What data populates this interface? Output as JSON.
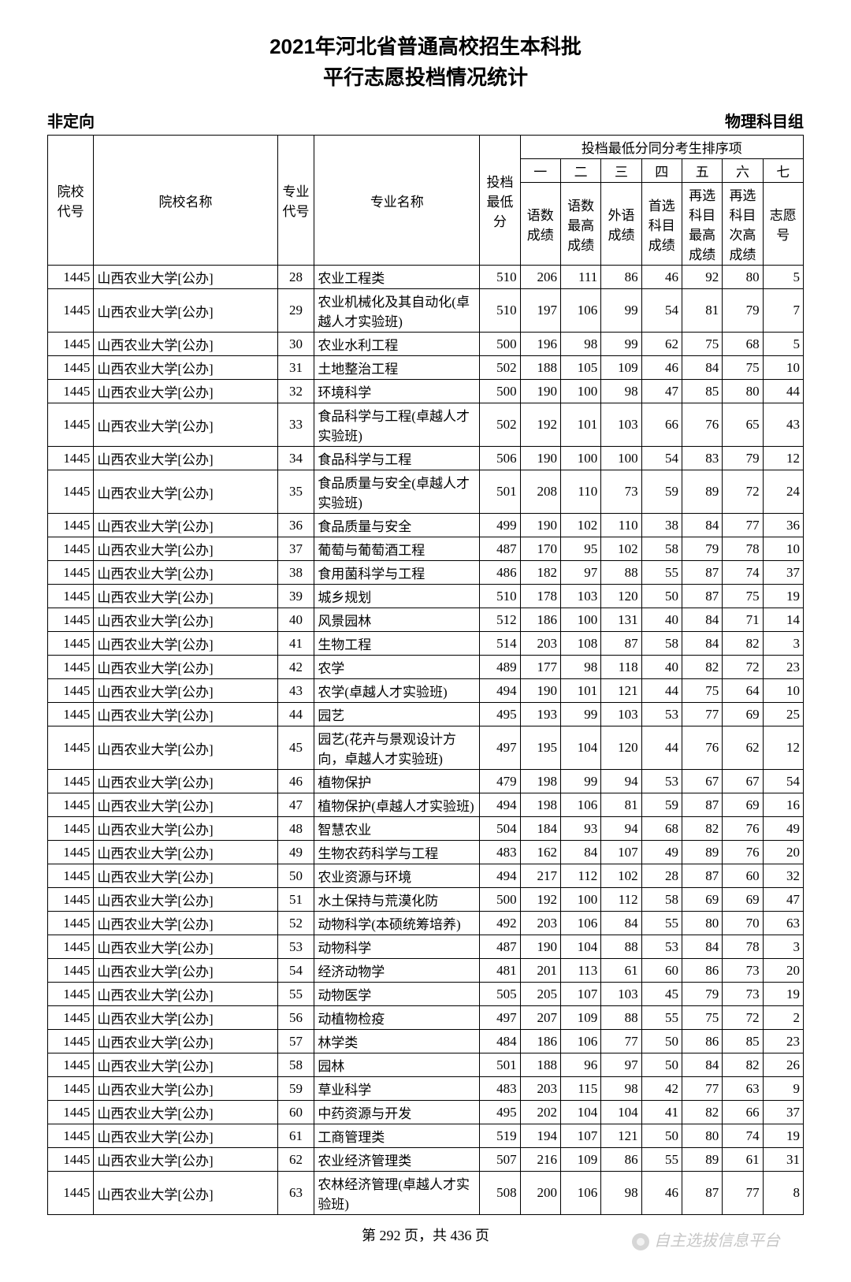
{
  "title_line1": "2021年河北省普通高校招生本科批",
  "title_line2": "平行志愿投档情况统计",
  "left_label": "非定向",
  "right_label": "物理科目组",
  "header_group": "投档最低分同分考生排序项",
  "cols": {
    "school_code": "院校代号",
    "school_name": "院校名称",
    "major_code": "专业代号",
    "major_name": "专业名称",
    "min_score": "投档最低分",
    "num1": "一",
    "num2": "二",
    "num3": "三",
    "num4": "四",
    "num5": "五",
    "num6": "六",
    "num7": "七",
    "sub1": "语数成绩",
    "sub2": "语数最高成绩",
    "sub3": "外语成绩",
    "sub4": "首选科目成绩",
    "sub5": "再选科目最高成绩",
    "sub6": "再选科目次高成绩",
    "sub7": "志愿号"
  },
  "footer": "第 292 页，共 436 页",
  "watermark": "自主选拔信息平台",
  "rows": [
    {
      "code": "1445",
      "school": "山西农业大学[公办]",
      "mcode": "28",
      "major": "农业工程类",
      "s": 510,
      "a": 206,
      "b": 111,
      "c": 86,
      "d": 46,
      "e": 92,
      "f": 80,
      "g": 5
    },
    {
      "code": "1445",
      "school": "山西农业大学[公办]",
      "mcode": "29",
      "major": "农业机械化及其自动化(卓越人才实验班)",
      "s": 510,
      "a": 197,
      "b": 106,
      "c": 99,
      "d": 54,
      "e": 81,
      "f": 79,
      "g": 7
    },
    {
      "code": "1445",
      "school": "山西农业大学[公办]",
      "mcode": "30",
      "major": "农业水利工程",
      "s": 500,
      "a": 196,
      "b": 98,
      "c": 99,
      "d": 62,
      "e": 75,
      "f": 68,
      "g": 5
    },
    {
      "code": "1445",
      "school": "山西农业大学[公办]",
      "mcode": "31",
      "major": "土地整治工程",
      "s": 502,
      "a": 188,
      "b": 105,
      "c": 109,
      "d": 46,
      "e": 84,
      "f": 75,
      "g": 10
    },
    {
      "code": "1445",
      "school": "山西农业大学[公办]",
      "mcode": "32",
      "major": "环境科学",
      "s": 500,
      "a": 190,
      "b": 100,
      "c": 98,
      "d": 47,
      "e": 85,
      "f": 80,
      "g": 44
    },
    {
      "code": "1445",
      "school": "山西农业大学[公办]",
      "mcode": "33",
      "major": "食品科学与工程(卓越人才实验班)",
      "s": 502,
      "a": 192,
      "b": 101,
      "c": 103,
      "d": 66,
      "e": 76,
      "f": 65,
      "g": 43
    },
    {
      "code": "1445",
      "school": "山西农业大学[公办]",
      "mcode": "34",
      "major": "食品科学与工程",
      "s": 506,
      "a": 190,
      "b": 100,
      "c": 100,
      "d": 54,
      "e": 83,
      "f": 79,
      "g": 12
    },
    {
      "code": "1445",
      "school": "山西农业大学[公办]",
      "mcode": "35",
      "major": "食品质量与安全(卓越人才实验班)",
      "s": 501,
      "a": 208,
      "b": 110,
      "c": 73,
      "d": 59,
      "e": 89,
      "f": 72,
      "g": 24
    },
    {
      "code": "1445",
      "school": "山西农业大学[公办]",
      "mcode": "36",
      "major": "食品质量与安全",
      "s": 499,
      "a": 190,
      "b": 102,
      "c": 110,
      "d": 38,
      "e": 84,
      "f": 77,
      "g": 36
    },
    {
      "code": "1445",
      "school": "山西农业大学[公办]",
      "mcode": "37",
      "major": "葡萄与葡萄酒工程",
      "s": 487,
      "a": 170,
      "b": 95,
      "c": 102,
      "d": 58,
      "e": 79,
      "f": 78,
      "g": 10
    },
    {
      "code": "1445",
      "school": "山西农业大学[公办]",
      "mcode": "38",
      "major": "食用菌科学与工程",
      "s": 486,
      "a": 182,
      "b": 97,
      "c": 88,
      "d": 55,
      "e": 87,
      "f": 74,
      "g": 37
    },
    {
      "code": "1445",
      "school": "山西农业大学[公办]",
      "mcode": "39",
      "major": "城乡规划",
      "s": 510,
      "a": 178,
      "b": 103,
      "c": 120,
      "d": 50,
      "e": 87,
      "f": 75,
      "g": 19
    },
    {
      "code": "1445",
      "school": "山西农业大学[公办]",
      "mcode": "40",
      "major": "风景园林",
      "s": 512,
      "a": 186,
      "b": 100,
      "c": 131,
      "d": 40,
      "e": 84,
      "f": 71,
      "g": 14
    },
    {
      "code": "1445",
      "school": "山西农业大学[公办]",
      "mcode": "41",
      "major": "生物工程",
      "s": 514,
      "a": 203,
      "b": 108,
      "c": 87,
      "d": 58,
      "e": 84,
      "f": 82,
      "g": 3
    },
    {
      "code": "1445",
      "school": "山西农业大学[公办]",
      "mcode": "42",
      "major": "农学",
      "s": 489,
      "a": 177,
      "b": 98,
      "c": 118,
      "d": 40,
      "e": 82,
      "f": 72,
      "g": 23
    },
    {
      "code": "1445",
      "school": "山西农业大学[公办]",
      "mcode": "43",
      "major": "农学(卓越人才实验班)",
      "s": 494,
      "a": 190,
      "b": 101,
      "c": 121,
      "d": 44,
      "e": 75,
      "f": 64,
      "g": 10
    },
    {
      "code": "1445",
      "school": "山西农业大学[公办]",
      "mcode": "44",
      "major": "园艺",
      "s": 495,
      "a": 193,
      "b": 99,
      "c": 103,
      "d": 53,
      "e": 77,
      "f": 69,
      "g": 25
    },
    {
      "code": "1445",
      "school": "山西农业大学[公办]",
      "mcode": "45",
      "major": "园艺(花卉与景观设计方向，卓越人才实验班)",
      "s": 497,
      "a": 195,
      "b": 104,
      "c": 120,
      "d": 44,
      "e": 76,
      "f": 62,
      "g": 12
    },
    {
      "code": "1445",
      "school": "山西农业大学[公办]",
      "mcode": "46",
      "major": "植物保护",
      "s": 479,
      "a": 198,
      "b": 99,
      "c": 94,
      "d": 53,
      "e": 67,
      "f": 67,
      "g": 54
    },
    {
      "code": "1445",
      "school": "山西农业大学[公办]",
      "mcode": "47",
      "major": "植物保护(卓越人才实验班)",
      "s": 494,
      "a": 198,
      "b": 106,
      "c": 81,
      "d": 59,
      "e": 87,
      "f": 69,
      "g": 16
    },
    {
      "code": "1445",
      "school": "山西农业大学[公办]",
      "mcode": "48",
      "major": "智慧农业",
      "s": 504,
      "a": 184,
      "b": 93,
      "c": 94,
      "d": 68,
      "e": 82,
      "f": 76,
      "g": 49
    },
    {
      "code": "1445",
      "school": "山西农业大学[公办]",
      "mcode": "49",
      "major": "生物农药科学与工程",
      "s": 483,
      "a": 162,
      "b": 84,
      "c": 107,
      "d": 49,
      "e": 89,
      "f": 76,
      "g": 20
    },
    {
      "code": "1445",
      "school": "山西农业大学[公办]",
      "mcode": "50",
      "major": "农业资源与环境",
      "s": 494,
      "a": 217,
      "b": 112,
      "c": 102,
      "d": 28,
      "e": 87,
      "f": 60,
      "g": 32
    },
    {
      "code": "1445",
      "school": "山西农业大学[公办]",
      "mcode": "51",
      "major": "水土保持与荒漠化防",
      "s": 500,
      "a": 192,
      "b": 100,
      "c": 112,
      "d": 58,
      "e": 69,
      "f": 69,
      "g": 47
    },
    {
      "code": "1445",
      "school": "山西农业大学[公办]",
      "mcode": "52",
      "major": "动物科学(本硕统筹培养)",
      "s": 492,
      "a": 203,
      "b": 106,
      "c": 84,
      "d": 55,
      "e": 80,
      "f": 70,
      "g": 63
    },
    {
      "code": "1445",
      "school": "山西农业大学[公办]",
      "mcode": "53",
      "major": "动物科学",
      "s": 487,
      "a": 190,
      "b": 104,
      "c": 88,
      "d": 53,
      "e": 84,
      "f": 78,
      "g": 3
    },
    {
      "code": "1445",
      "school": "山西农业大学[公办]",
      "mcode": "54",
      "major": "经济动物学",
      "s": 481,
      "a": 201,
      "b": 113,
      "c": 61,
      "d": 60,
      "e": 86,
      "f": 73,
      "g": 20
    },
    {
      "code": "1445",
      "school": "山西农业大学[公办]",
      "mcode": "55",
      "major": "动物医学",
      "s": 505,
      "a": 205,
      "b": 107,
      "c": 103,
      "d": 45,
      "e": 79,
      "f": 73,
      "g": 19
    },
    {
      "code": "1445",
      "school": "山西农业大学[公办]",
      "mcode": "56",
      "major": "动植物检疫",
      "s": 497,
      "a": 207,
      "b": 109,
      "c": 88,
      "d": 55,
      "e": 75,
      "f": 72,
      "g": 2
    },
    {
      "code": "1445",
      "school": "山西农业大学[公办]",
      "mcode": "57",
      "major": "林学类",
      "s": 484,
      "a": 186,
      "b": 106,
      "c": 77,
      "d": 50,
      "e": 86,
      "f": 85,
      "g": 23
    },
    {
      "code": "1445",
      "school": "山西农业大学[公办]",
      "mcode": "58",
      "major": "园林",
      "s": 501,
      "a": 188,
      "b": 96,
      "c": 97,
      "d": 50,
      "e": 84,
      "f": 82,
      "g": 26
    },
    {
      "code": "1445",
      "school": "山西农业大学[公办]",
      "mcode": "59",
      "major": "草业科学",
      "s": 483,
      "a": 203,
      "b": 115,
      "c": 98,
      "d": 42,
      "e": 77,
      "f": 63,
      "g": 9
    },
    {
      "code": "1445",
      "school": "山西农业大学[公办]",
      "mcode": "60",
      "major": "中药资源与开发",
      "s": 495,
      "a": 202,
      "b": 104,
      "c": 104,
      "d": 41,
      "e": 82,
      "f": 66,
      "g": 37
    },
    {
      "code": "1445",
      "school": "山西农业大学[公办]",
      "mcode": "61",
      "major": "工商管理类",
      "s": 519,
      "a": 194,
      "b": 107,
      "c": 121,
      "d": 50,
      "e": 80,
      "f": 74,
      "g": 19
    },
    {
      "code": "1445",
      "school": "山西农业大学[公办]",
      "mcode": "62",
      "major": "农业经济管理类",
      "s": 507,
      "a": 216,
      "b": 109,
      "c": 86,
      "d": 55,
      "e": 89,
      "f": 61,
      "g": 31
    },
    {
      "code": "1445",
      "school": "山西农业大学[公办]",
      "mcode": "63",
      "major": "农林经济管理(卓越人才实验班)",
      "s": 508,
      "a": 200,
      "b": 106,
      "c": 98,
      "d": 46,
      "e": 87,
      "f": 77,
      "g": 8
    }
  ]
}
